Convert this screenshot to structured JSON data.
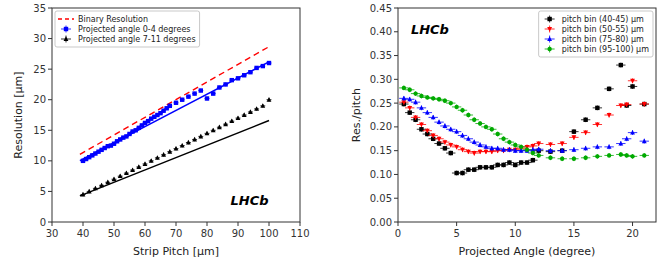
{
  "chart_data": [
    {
      "type": "scatter",
      "xlabel": "Strip Pitch [μm]",
      "ylabel": "Resolution [μm]",
      "xlim": [
        30,
        110
      ],
      "ylim": [
        0,
        35
      ],
      "xticks": [
        30,
        40,
        50,
        60,
        70,
        80,
        90,
        100,
        110
      ],
      "yticks": [
        0,
        5,
        10,
        15,
        20,
        25,
        30,
        35
      ],
      "grid": false,
      "legend": "upper left",
      "annotations": [
        {
          "text": "LHCb"
        }
      ],
      "series": [
        {
          "name": "Binary Resolution",
          "type": "line",
          "color": "#FF0000",
          "line_style": "dashed",
          "x": [
            39,
            100
          ],
          "values": [
            11.0593,
            28.67
          ]
        },
        {
          "type": "line",
          "color": "#0000FF",
          "line_style": "solid",
          "x": [
            39,
            100
          ],
          "values": [
            10.035,
            26.2
          ]
        },
        {
          "name": "Projected angle 0-4 degrees",
          "type": "scatter",
          "color": "#0000FF",
          "marker": "square",
          "x": [
            40,
            41,
            42,
            43,
            44,
            45,
            46,
            47,
            48,
            49,
            50,
            51,
            52,
            53,
            54,
            55,
            56,
            57,
            58,
            59,
            60,
            61,
            62,
            63,
            64,
            65,
            66,
            67,
            68,
            70,
            72,
            74,
            76,
            78,
            80,
            82,
            84,
            86,
            88,
            90,
            92,
            94,
            96,
            98,
            100
          ],
          "values": [
            10.0,
            10.3,
            10.6,
            10.9,
            11.2,
            11.5,
            11.8,
            12.1,
            12.4,
            12.5,
            12.8,
            13.2,
            13.5,
            13.8,
            14.0,
            14.4,
            14.8,
            15.0,
            15.4,
            15.8,
            16.2,
            16.5,
            16.9,
            17.2,
            17.5,
            17.8,
            18.2,
            18.6,
            19.0,
            19.5,
            20.0,
            20.5,
            21.0,
            21.5,
            20.2,
            21.0,
            22.0,
            22.5,
            23.2,
            23.5,
            24.0,
            24.5,
            25.2,
            25.5,
            26.0
          ],
          "x_error": 0.8,
          "y_error": 0.3
        },
        {
          "type": "line",
          "color": "#000000",
          "line_style": "solid",
          "x": [
            39,
            100
          ],
          "values": [
            4.278,
            16.6
          ]
        },
        {
          "name": "Projected angle 7-11 degrees",
          "type": "scatter",
          "color": "#000000",
          "marker": "triangle-up",
          "x": [
            40,
            42,
            44,
            46,
            48,
            50,
            52,
            54,
            56,
            58,
            60,
            62,
            64,
            66,
            68,
            70,
            72,
            74,
            76,
            78,
            80,
            82,
            84,
            86,
            88,
            90,
            92,
            94,
            96,
            98,
            100
          ],
          "values": [
            4.5,
            5.0,
            5.5,
            6.0,
            6.5,
            7.0,
            7.5,
            8.0,
            8.5,
            9.0,
            9.5,
            10.0,
            10.5,
            11.0,
            11.5,
            12.0,
            12.5,
            13.0,
            13.5,
            14.0,
            14.5,
            15.0,
            15.5,
            16.0,
            16.5,
            17.0,
            17.5,
            18.0,
            18.5,
            19.0,
            20.0
          ],
          "x_error": 0.8,
          "y_error": 0.3
        }
      ]
    },
    {
      "type": "scatter",
      "xlabel": "Projected Angle (degree)",
      "ylabel": "Res./pitch",
      "xlim": [
        0,
        22
      ],
      "ylim": [
        0,
        0.45
      ],
      "xticks": [
        0,
        5,
        10,
        15,
        20
      ],
      "yticks": [
        {
          "value": 0,
          "label": "0.00"
        },
        0.05,
        {
          "value": 0.1,
          "label": "0.10"
        },
        0.15,
        {
          "value": 0.2,
          "label": "0.20"
        },
        0.25,
        {
          "value": 0.3,
          "label": "0.30"
        },
        0.35,
        {
          "value": 0.4,
          "label": "0.40"
        },
        0.45
      ],
      "grid": false,
      "legend": "upper right",
      "annotations": [
        {
          "text": "LHCb"
        }
      ],
      "series": [
        {
          "name": "pitch bin (40-45) μm",
          "type": "scatter",
          "color": "#000000",
          "marker": "square",
          "x": [
            0.5,
            1.0,
            1.5,
            2.0,
            2.5,
            3.0,
            3.5,
            4.0,
            4.5,
            5.0,
            5.5,
            6.0,
            6.5,
            7.0,
            7.5,
            8.0,
            8.5,
            9.0,
            9.5,
            10.0,
            10.5,
            11.0,
            11.5,
            12.0,
            13.0,
            14.0,
            15.0,
            16.0,
            17.0,
            18.0,
            19.0,
            19.5,
            20.0,
            21.0
          ],
          "values": [
            0.248,
            0.23,
            0.215,
            0.195,
            0.185,
            0.175,
            0.165,
            0.155,
            0.145,
            0.103,
            0.103,
            0.11,
            0.11,
            0.115,
            0.115,
            0.115,
            0.12,
            0.12,
            0.125,
            0.12,
            0.125,
            0.125,
            0.13,
            0.15,
            0.148,
            0.15,
            0.19,
            0.215,
            0.24,
            0.28,
            0.33,
            0.245,
            0.285,
            0.248
          ],
          "x_error": 0.4,
          "y_error": 0.005
        },
        {
          "name": "pitch bin (50-55) μm",
          "type": "scatter",
          "color": "#FF0000",
          "marker": "triangle-down",
          "x": [
            0.5,
            1.0,
            1.5,
            2.0,
            2.5,
            3.0,
            3.5,
            4.0,
            4.5,
            5.0,
            5.5,
            6.0,
            6.5,
            7.0,
            7.5,
            8.0,
            8.5,
            9.0,
            9.5,
            10.0,
            10.5,
            11.0,
            11.5,
            12.0,
            13.0,
            14.0,
            15.0,
            16.0,
            17.0,
            18.0,
            19.0,
            19.5,
            20.0,
            21.0
          ],
          "values": [
            0.252,
            0.24,
            0.22,
            0.205,
            0.192,
            0.182,
            0.175,
            0.168,
            0.162,
            0.158,
            0.152,
            0.148,
            0.145,
            0.148,
            0.148,
            0.148,
            0.15,
            0.15,
            0.152,
            0.152,
            0.155,
            0.158,
            0.16,
            0.165,
            0.163,
            0.165,
            0.178,
            0.188,
            0.205,
            0.225,
            0.245,
            0.247,
            0.297,
            0.248
          ],
          "x_error": 0.4,
          "y_error": 0.005
        },
        {
          "name": "pitch bin (75-80) μm",
          "type": "scatter",
          "color": "#0000FF",
          "marker": "triangle-up",
          "x": [
            0.5,
            1.0,
            1.5,
            2.0,
            2.5,
            3.0,
            3.5,
            4.0,
            4.5,
            5.0,
            5.5,
            6.0,
            6.5,
            7.0,
            7.5,
            8.0,
            8.5,
            9.0,
            9.5,
            10.0,
            10.5,
            11.0,
            11.5,
            12.0,
            13.0,
            14.0,
            15.0,
            16.0,
            17.0,
            18.0,
            19.0,
            19.5,
            20.0,
            21.0
          ],
          "values": [
            0.26,
            0.258,
            0.252,
            0.24,
            0.23,
            0.22,
            0.21,
            0.202,
            0.195,
            0.19,
            0.182,
            0.175,
            0.168,
            0.162,
            0.158,
            0.155,
            0.155,
            0.152,
            0.152,
            0.15,
            0.15,
            0.15,
            0.152,
            0.153,
            0.15,
            0.15,
            0.152,
            0.155,
            0.158,
            0.158,
            0.165,
            0.175,
            0.188,
            0.17
          ],
          "x_error": 0.4,
          "y_error": 0.005
        },
        {
          "name": "pitch bin (95-100) μm",
          "type": "scatter",
          "color": "#00AA00",
          "marker": "circle",
          "x": [
            0.5,
            1.0,
            1.5,
            2.0,
            2.5,
            3.0,
            3.5,
            4.0,
            4.5,
            5.0,
            5.5,
            6.0,
            6.5,
            7.0,
            7.5,
            8.0,
            8.5,
            9.0,
            9.5,
            10.0,
            10.5,
            11.0,
            11.5,
            12.0,
            13.0,
            14.0,
            15.0,
            16.0,
            17.0,
            18.0,
            19.0,
            19.5,
            20.0,
            21.0
          ],
          "values": [
            0.282,
            0.278,
            0.27,
            0.265,
            0.262,
            0.26,
            0.258,
            0.255,
            0.25,
            0.242,
            0.235,
            0.225,
            0.215,
            0.207,
            0.2,
            0.195,
            0.185,
            0.175,
            0.168,
            0.162,
            0.158,
            0.152,
            0.145,
            0.14,
            0.135,
            0.133,
            0.133,
            0.135,
            0.138,
            0.14,
            0.142,
            0.14,
            0.138,
            0.14
          ],
          "x_error": 0.4,
          "y_error": 0.005
        }
      ]
    }
  ]
}
